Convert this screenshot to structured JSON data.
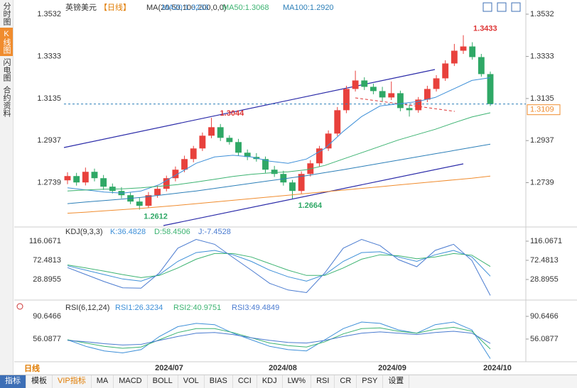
{
  "sidebar": [
    "分时图",
    "K线图",
    "闪电图",
    "合约资料"
  ],
  "period_button": "日线",
  "toolbar": [
    "指标",
    "模板",
    "VIP指标",
    "MA",
    "MACD",
    "BOLL",
    "VOL",
    "BIAS",
    "CCI",
    "KDJ",
    "LW%",
    "RSI",
    "CR",
    "PSY",
    "设置"
  ],
  "x_labels": [
    "2024/07",
    "2024/08",
    "2024/09",
    "2024/10"
  ],
  "chart_data": [
    {
      "type": "candlestick",
      "symbol": "英镑美元",
      "period": "【日线】",
      "indicator": "MA(20,50,100,200,0,0)",
      "up_color": "#e8413c",
      "down_color": "#2fa866",
      "ylim": [
        1.2537,
        1.3582
      ],
      "yticks": [
        1.3532,
        1.3333,
        1.3135,
        1.2937,
        1.2739
      ],
      "annotations": [
        "1.3433",
        "1.3044",
        "1.2612",
        "1.2664"
      ],
      "open": [
        1.275,
        1.277,
        1.274,
        1.279,
        1.276,
        1.272,
        1.27,
        1.268,
        1.265,
        1.263,
        1.268,
        1.271,
        1.276,
        1.28,
        1.285,
        1.29,
        1.296,
        1.3,
        1.295,
        1.293,
        1.288,
        1.286,
        1.285,
        1.28,
        1.278,
        1.274,
        1.27,
        1.278,
        1.283,
        1.29,
        1.297,
        1.308,
        1.318,
        1.322,
        1.319,
        1.317,
        1.314,
        1.316,
        1.309,
        1.308,
        1.313,
        1.318,
        1.323,
        1.33,
        1.336,
        1.338,
        1.333,
        1.325
      ],
      "high": [
        1.2788,
        1.2785,
        1.281,
        1.2805,
        1.2775,
        1.2735,
        1.2718,
        1.2692,
        1.2668,
        1.2695,
        1.2725,
        1.2772,
        1.2815,
        1.2866,
        1.2912,
        1.2975,
        1.3044,
        1.3015,
        1.2962,
        1.2945,
        1.2895,
        1.2878,
        1.2862,
        1.2818,
        1.2795,
        1.2752,
        1.2792,
        1.2845,
        1.2912,
        1.2985,
        1.3095,
        1.3195,
        1.3266,
        1.3235,
        1.3205,
        1.319,
        1.3215,
        1.3172,
        1.3105,
        1.3142,
        1.3195,
        1.3245,
        1.3315,
        1.3392,
        1.3433,
        1.34,
        1.3345,
        1.3262
      ],
      "low": [
        1.2732,
        1.2725,
        1.2726,
        1.2745,
        1.2705,
        1.2688,
        1.2665,
        1.2638,
        1.2612,
        1.262,
        1.2668,
        1.2698,
        1.2745,
        1.2788,
        1.2835,
        1.2888,
        1.2948,
        1.2935,
        1.2918,
        1.2866,
        1.2845,
        1.2838,
        1.2785,
        1.2766,
        1.2725,
        1.2664,
        1.2688,
        1.2768,
        1.2815,
        1.2888,
        1.2958,
        1.3066,
        1.3168,
        1.3175,
        1.3155,
        1.3122,
        1.3128,
        1.3075,
        1.305,
        1.3068,
        1.3118,
        1.3168,
        1.3218,
        1.3288,
        1.3345,
        1.3318,
        1.3238,
        1.31
      ],
      "close": [
        1.277,
        1.274,
        1.279,
        1.276,
        1.272,
        1.27,
        1.268,
        1.265,
        1.263,
        1.268,
        1.271,
        1.276,
        1.28,
        1.285,
        1.29,
        1.296,
        1.3,
        1.295,
        1.293,
        1.288,
        1.286,
        1.285,
        1.28,
        1.278,
        1.274,
        1.27,
        1.278,
        1.283,
        1.29,
        1.297,
        1.308,
        1.318,
        1.322,
        1.319,
        1.317,
        1.314,
        1.316,
        1.309,
        1.308,
        1.313,
        1.318,
        1.323,
        1.33,
        1.336,
        1.338,
        1.333,
        1.325,
        1.3109
      ],
      "series": [
        {
          "name": "MA20:1.3233",
          "color": "#3d8fd8",
          "values": [
            1.2715,
            1.2705,
            1.2695,
            1.269,
            1.27,
            1.273,
            1.278,
            1.283,
            1.286,
            1.2868,
            1.286,
            1.284,
            1.283,
            1.285,
            1.29,
            1.298,
            1.305,
            1.31,
            1.311,
            1.312,
            1.314,
            1.318,
            1.322,
            1.3233
          ]
        },
        {
          "name": "MA50:1.3068",
          "color": "#3cb371",
          "values": [
            1.27,
            1.2705,
            1.2708,
            1.271,
            1.2715,
            1.2722,
            1.273,
            1.2742,
            1.2755,
            1.2768,
            1.2778,
            1.2785,
            1.279,
            1.28,
            1.282,
            1.285,
            1.288,
            1.291,
            1.294,
            1.2965,
            1.299,
            1.302,
            1.3048,
            1.3068
          ]
        },
        {
          "name": "MA100:1.2920",
          "color": "#2c7fb8",
          "values": [
            1.264,
            1.2648,
            1.2655,
            1.2662,
            1.267,
            1.268,
            1.269,
            1.27,
            1.2712,
            1.2724,
            1.2736,
            1.2748,
            1.276,
            1.2772,
            1.2786,
            1.28,
            1.2815,
            1.283,
            1.2845,
            1.286,
            1.2875,
            1.289,
            1.2905,
            1.292
          ]
        },
        {
          "color": "#f08c2e",
          "values": [
            1.2595,
            1.26,
            1.2606,
            1.2612,
            1.2618,
            1.2625,
            1.2632,
            1.264,
            1.2648,
            1.2656,
            1.2664,
            1.2672,
            1.268,
            1.2688,
            1.2696,
            1.2704,
            1.2712,
            1.272,
            1.2728,
            1.2736,
            1.2744,
            1.2752,
            1.276,
            1.277
          ]
        }
      ]
    },
    {
      "type": "line",
      "title": "KDJ(9,3,3)",
      "ylim": [
        -13.1,
        145.1
      ],
      "yticks": [
        116.0671,
        72.4813,
        28.8955
      ],
      "series": [
        {
          "name": "K:36.4828",
          "color": "#3d8fd8",
          "values": [
            60,
            50,
            40,
            30,
            25,
            40,
            70,
            90,
            95,
            85,
            70,
            50,
            35,
            25,
            40,
            70,
            90,
            92,
            80,
            70,
            85,
            95,
            80,
            36.4828
          ]
        },
        {
          "name": "D:58.4506",
          "color": "#3cb371",
          "values": [
            62,
            55,
            48,
            40,
            33,
            38,
            55,
            75,
            88,
            88,
            80,
            65,
            50,
            38,
            38,
            55,
            75,
            85,
            83,
            76,
            80,
            88,
            84,
            58.4506
          ]
        },
        {
          "name": "J:-7.4528",
          "color": "#4a7bd0",
          "values": [
            56,
            40,
            24,
            10,
            9,
            44,
            100,
            120,
            109,
            79,
            50,
            20,
            5,
            -1,
            44,
            100,
            120,
            106,
            74,
            58,
            95,
            109,
            72,
            -7.4528
          ]
        }
      ]
    },
    {
      "type": "line",
      "title": "RSI(6,12,24)",
      "ylim": [
        21.5,
        110.1
      ],
      "yticks": [
        90.6466,
        56.0877
      ],
      "series": [
        {
          "name": "RSI1:26.3234",
          "color": "#3d8fd8",
          "values": [
            55,
            45,
            38,
            35,
            40,
            60,
            75,
            80,
            78,
            65,
            55,
            45,
            40,
            38,
            55,
            72,
            82,
            80,
            70,
            65,
            78,
            82,
            70,
            26.3234
          ]
        },
        {
          "name": "RSI2:40.9751",
          "color": "#3cb371",
          "values": [
            55,
            50,
            45,
            42,
            44,
            55,
            66,
            72,
            72,
            66,
            58,
            50,
            46,
            44,
            52,
            64,
            72,
            73,
            68,
            65,
            71,
            74,
            68,
            40.9751
          ]
        },
        {
          "name": "RSI3:49.4849",
          "color": "#4a7bd0",
          "values": [
            54,
            52,
            49,
            47,
            48,
            54,
            60,
            65,
            66,
            63,
            58,
            54,
            51,
            50,
            54,
            60,
            65,
            67,
            65,
            63,
            66,
            68,
            65,
            49.4849
          ]
        }
      ]
    }
  ]
}
